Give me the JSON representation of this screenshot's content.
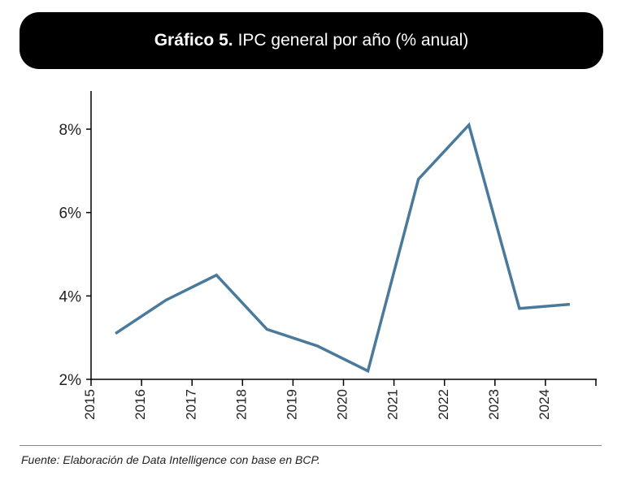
{
  "title": {
    "bold": "Gráfico 5.",
    "rest": "IPC general por año (% anual)"
  },
  "source": "Fuente: Elaboración de Data Intelligence con base en BCP.",
  "colors": {
    "line": "#4a7a9b",
    "axis": "#000000"
  },
  "chart_data": {
    "type": "line",
    "title": "Gráfico 5. IPC general por año (% anual)",
    "xlabel": "",
    "ylabel": "",
    "categories": [
      "2015",
      "2016",
      "2017",
      "2018",
      "2019",
      "2020",
      "2021",
      "2022",
      "2023",
      "2024"
    ],
    "values": [
      3.1,
      3.9,
      4.5,
      3.2,
      2.8,
      2.2,
      6.8,
      8.1,
      3.7,
      3.8
    ],
    "ylim": [
      2,
      8.9
    ],
    "yticks": [
      2,
      4,
      6,
      8
    ],
    "ytick_labels": [
      "2%",
      "4%",
      "6%",
      "8%"
    ],
    "grid": false
  }
}
